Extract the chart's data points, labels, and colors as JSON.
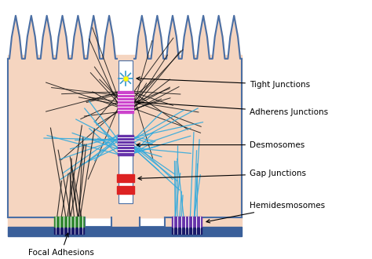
{
  "bg_color": "#f5d5c0",
  "cell_outline_color": "#4a6fa5",
  "basal_lamina_color": "#3a5f9a",
  "adherens_color": "#cc44cc",
  "desmosome_color": "#6633aa",
  "gap_junction_color": "#dd2222",
  "hemidesmosome_left_color": "#338833",
  "hemidesmosome_right_color": "#6633aa",
  "actin_color": "#111111",
  "intermediate_color": "#33aadd",
  "white": "#ffffff",
  "labels": {
    "tight": "Tight Junctions",
    "adherens": "Adherens Junctions",
    "desmosome": "Desmosomes",
    "gap": "Gap Junctions",
    "hemi": "Hemidesmosomes",
    "focal": "Focal Adhesions"
  },
  "label_fontsize": 7.5
}
